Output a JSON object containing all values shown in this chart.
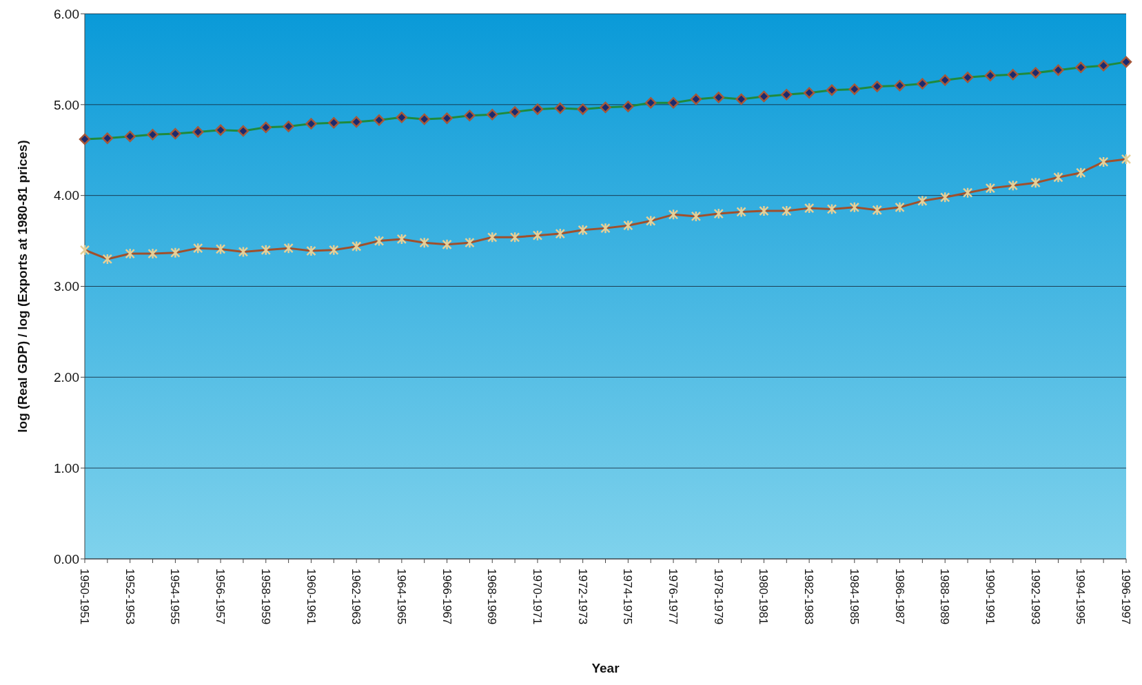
{
  "chart_data": {
    "type": "line",
    "xlabel": "Year",
    "ylabel": "log (Real GDP) / log (Exports at 1980-81 prices)",
    "categories": [
      "1950-1951",
      null,
      "1952-1953",
      null,
      "1954-1955",
      null,
      "1956-1957",
      null,
      "1958-1959",
      null,
      "1960-1961",
      null,
      "1962-1963",
      null,
      "1964-1965",
      null,
      "1966-1967",
      null,
      "1968-1969",
      null,
      "1970-1971",
      null,
      "1972-1973",
      null,
      "1974-1975",
      null,
      "1976-1977",
      null,
      "1978-1979",
      null,
      "1980-1981",
      null,
      "1982-1983",
      null,
      "1984-1985",
      null,
      "1986-1987",
      null,
      "1988-1989",
      null,
      "1990-1991",
      null,
      "1992-1993",
      null,
      "1994-1995",
      null,
      "1996-1997"
    ],
    "series": [
      {
        "color": "#1f8a3c",
        "marker": "diamond",
        "values": [
          4.62,
          4.63,
          4.65,
          4.67,
          4.68,
          4.7,
          4.72,
          4.71,
          4.75,
          4.76,
          4.79,
          4.8,
          4.81,
          4.83,
          4.86,
          4.84,
          4.85,
          4.88,
          4.89,
          4.92,
          4.95,
          4.96,
          4.95,
          4.97,
          4.98,
          5.02,
          5.02,
          5.06,
          5.08,
          5.06,
          5.09,
          5.11,
          5.13,
          5.16,
          5.17,
          5.2,
          5.21,
          5.23,
          5.27,
          5.3,
          5.32,
          5.33,
          5.35,
          5.38,
          5.41,
          5.43,
          5.47
        ]
      },
      {
        "color": "#a0502c",
        "marker": "cross",
        "values": [
          3.4,
          3.3,
          3.36,
          3.36,
          3.37,
          3.42,
          3.41,
          3.38,
          3.4,
          3.42,
          3.39,
          3.4,
          3.44,
          3.5,
          3.52,
          3.48,
          3.46,
          3.48,
          3.54,
          3.54,
          3.56,
          3.58,
          3.62,
          3.64,
          3.67,
          3.72,
          3.79,
          3.77,
          3.8,
          3.82,
          3.83,
          3.83,
          3.86,
          3.85,
          3.87,
          3.84,
          3.87,
          3.94,
          3.98,
          4.03,
          4.08,
          4.11,
          4.14,
          4.2,
          4.25,
          4.37,
          4.4
        ]
      }
    ],
    "ylim": [
      0,
      6
    ],
    "yticks": [
      {
        "value": 0,
        "label": "0.00"
      },
      {
        "value": 1,
        "label": "1.00"
      },
      {
        "value": 2,
        "label": "2.00"
      },
      {
        "value": 3,
        "label": "3.00"
      },
      {
        "value": 4,
        "label": "4.00"
      },
      {
        "value": 5,
        "label": "5.00"
      },
      {
        "value": 6,
        "label": "6.00"
      }
    ],
    "grid": "y",
    "legend": false,
    "line_style": "solid"
  }
}
